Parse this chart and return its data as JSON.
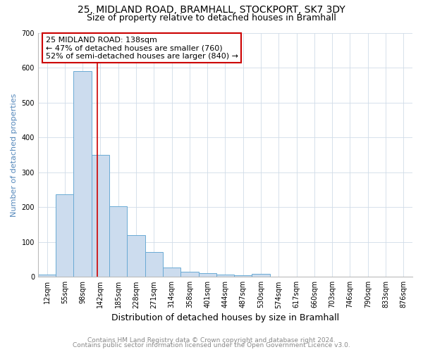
{
  "title1": "25, MIDLAND ROAD, BRAMHALL, STOCKPORT, SK7 3DY",
  "title2": "Size of property relative to detached houses in Bramhall",
  "xlabel": "Distribution of detached houses by size in Bramhall",
  "ylabel": "Number of detached properties",
  "bin_labels": [
    "12sqm",
    "55sqm",
    "98sqm",
    "142sqm",
    "185sqm",
    "228sqm",
    "271sqm",
    "314sqm",
    "358sqm",
    "401sqm",
    "444sqm",
    "487sqm",
    "530sqm",
    "574sqm",
    "617sqm",
    "660sqm",
    "703sqm",
    "746sqm",
    "790sqm",
    "833sqm",
    "876sqm"
  ],
  "bar_heights": [
    7,
    236,
    590,
    350,
    202,
    119,
    72,
    26,
    15,
    10,
    6,
    5,
    8,
    0,
    0,
    0,
    0,
    0,
    0,
    0,
    0
  ],
  "bar_color": "#ccdcee",
  "bar_edge_color": "#6aaad4",
  "vline_x": 2.82,
  "vline_color": "#cc0000",
  "ylim": [
    0,
    700
  ],
  "yticks": [
    0,
    100,
    200,
    300,
    400,
    500,
    600,
    700
  ],
  "annotation_text": "25 MIDLAND ROAD: 138sqm\n← 47% of detached houses are smaller (760)\n52% of semi-detached houses are larger (840) →",
  "annotation_box_color": "white",
  "annotation_box_edge_color": "#cc0000",
  "footer1": "Contains HM Land Registry data © Crown copyright and database right 2024.",
  "footer2": "Contains public sector information licensed under the Open Government Licence v3.0.",
  "bg_color": "white",
  "grid_color": "#d0dce8",
  "ylabel_color": "#5588bb",
  "title1_fontsize": 10,
  "title2_fontsize": 9,
  "xlabel_fontsize": 9,
  "ylabel_fontsize": 8,
  "tick_fontsize": 7,
  "annotation_fontsize": 8,
  "footer_fontsize": 6.5
}
